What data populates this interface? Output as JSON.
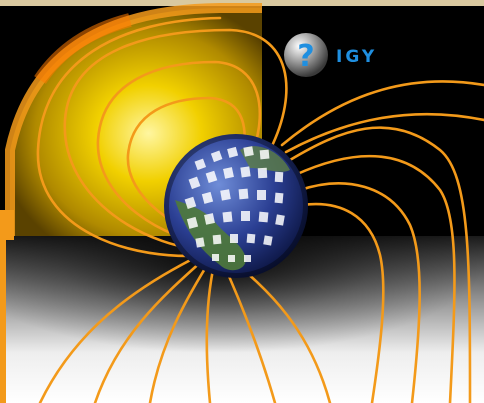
{
  "logo": {
    "name": "IGY",
    "glyph": "?",
    "text_color": "#1f8fe0",
    "sphere_color": "#9a9a9a"
  },
  "illustration": {
    "subject": "earth-magnetosphere",
    "sun_color": "#f0d000",
    "field_line_color": "#f39a1a",
    "background_top": "#000000",
    "background_bottom": "#ffffff"
  }
}
